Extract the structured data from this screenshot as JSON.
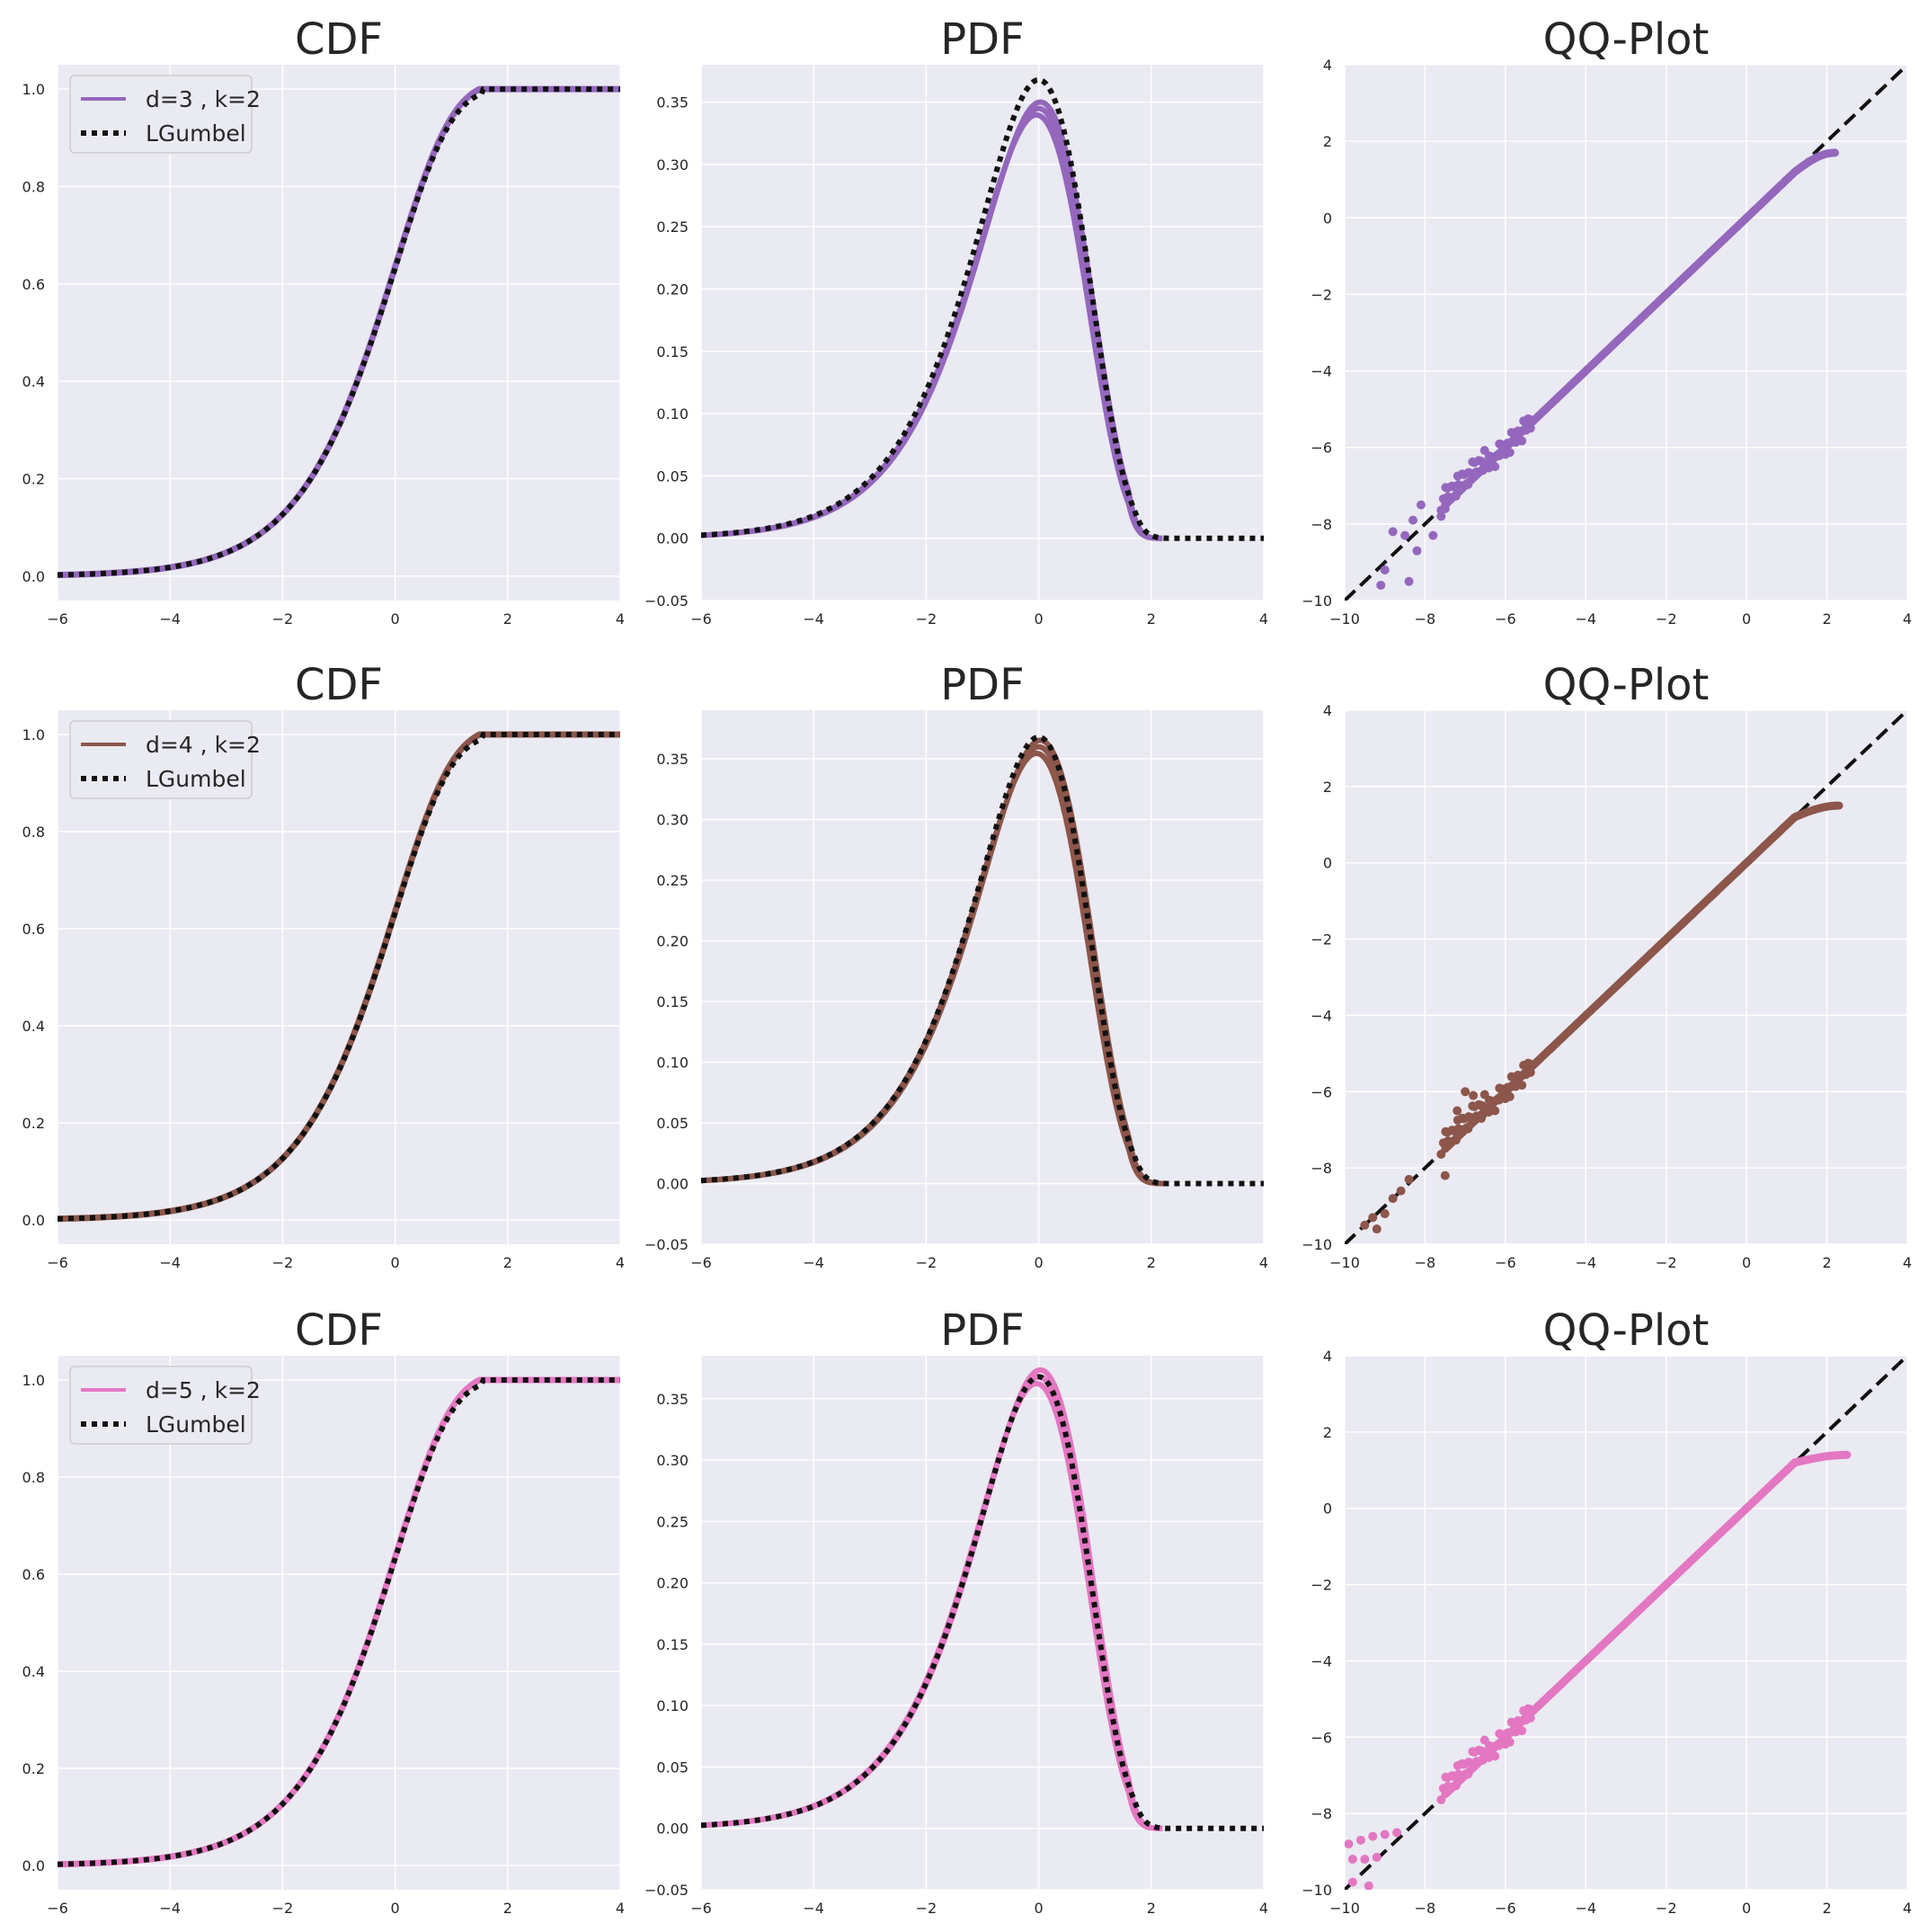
{
  "colors": {
    "background": "#eaeaf2",
    "grid": "#ffffff",
    "text": "#262626",
    "reference": "#111111",
    "legend_bg": "#eaeaf2",
    "legend_border": "#cccccc"
  },
  "chart_data": [
    {
      "type": "line",
      "kind": "cdf",
      "row": 0,
      "title": "CDF",
      "color": "#9467bd",
      "xlim": [
        -6,
        4
      ],
      "ylim": [
        -0.05,
        1.05
      ],
      "xticks": [
        "−6",
        "−4",
        "−2",
        "0",
        "2",
        "4"
      ],
      "yticks": [
        "0.0",
        "0.2",
        "0.4",
        "0.6",
        "0.8",
        "1.0"
      ],
      "legend_position": "upper-left",
      "series": [
        {
          "name": "d=3 , k=2",
          "style": "solid",
          "curve": "simulated CDF, saturates at 1.0 near x=1.5"
        },
        {
          "name": "LGumbel",
          "style": "dotted",
          "curve": "exp(-exp(-x)) mirrored: 1-exp(-exp(x)), clipped"
        }
      ],
      "points_x": [
        -6,
        -5,
        -4,
        -3,
        -2,
        -1.5,
        -1,
        -0.5,
        0,
        0.5,
        1,
        1.5,
        2,
        3,
        4
      ],
      "points_y": [
        0.002,
        0.007,
        0.018,
        0.049,
        0.127,
        0.2,
        0.308,
        0.453,
        0.632,
        0.81,
        0.95,
        1.0,
        1.0,
        1.0,
        1.0
      ]
    },
    {
      "type": "line",
      "kind": "pdf",
      "row": 0,
      "title": "PDF",
      "color": "#9467bd",
      "xlim": [
        -6,
        4
      ],
      "ylim": [
        -0.05,
        0.38
      ],
      "xticks": [
        "−6",
        "−4",
        "−2",
        "0",
        "2",
        "4"
      ],
      "yticks": [
        "−0.05",
        "0.00",
        "0.05",
        "0.10",
        "0.15",
        "0.20",
        "0.25",
        "0.30",
        "0.35"
      ],
      "series": [
        {
          "name": "d=3 , k=2",
          "style": "solid"
        },
        {
          "name": "LGumbel",
          "style": "dotted"
        }
      ],
      "peak": {
        "x": 0,
        "y": 0.368
      },
      "sim_peak": {
        "x": 0,
        "y": 0.345
      },
      "support_end": 2.2
    },
    {
      "type": "scatter",
      "kind": "qq",
      "row": 0,
      "title": "QQ-Plot",
      "color": "#9467bd",
      "xlim": [
        -10,
        4
      ],
      "ylim": [
        -10,
        4
      ],
      "xticks": [
        "−10",
        "−8",
        "−6",
        "−4",
        "−2",
        "0",
        "2",
        "4"
      ],
      "yticks": [
        "−10",
        "−8",
        "−6",
        "−4",
        "−2",
        "0",
        "2",
        "4"
      ],
      "reference": "y = x (dashed)",
      "upper_tail": {
        "x": 2.2,
        "y": 1.7
      },
      "lower_scatter": [
        [
          -8.1,
          -7.5
        ],
        [
          -8.3,
          -7.9
        ],
        [
          -8.5,
          -8.3
        ],
        [
          -8.8,
          -8.2
        ],
        [
          -9,
          -9.2
        ],
        [
          -9.1,
          -9.6
        ],
        [
          -8.4,
          -9.5
        ],
        [
          -7.8,
          -8.3
        ],
        [
          -7.6,
          -7.8
        ],
        [
          -8.2,
          -8.7
        ],
        [
          -7.5,
          -7.6
        ]
      ]
    },
    {
      "type": "line",
      "kind": "cdf",
      "row": 1,
      "title": "CDF",
      "color": "#8c564b",
      "xlim": [
        -6,
        4
      ],
      "ylim": [
        -0.05,
        1.05
      ],
      "xticks": [
        "−6",
        "−4",
        "−2",
        "0",
        "2",
        "4"
      ],
      "yticks": [
        "0.0",
        "0.2",
        "0.4",
        "0.6",
        "0.8",
        "1.0"
      ],
      "legend_position": "upper-left",
      "series": [
        {
          "name": "d=4 , k=2",
          "style": "solid"
        },
        {
          "name": "LGumbel",
          "style": "dotted"
        }
      ],
      "points_x": [
        -6,
        -5,
        -4,
        -3,
        -2,
        -1.5,
        -1,
        -0.5,
        0,
        0.5,
        1,
        1.5,
        2,
        3,
        4
      ],
      "points_y": [
        0.002,
        0.007,
        0.018,
        0.049,
        0.127,
        0.2,
        0.308,
        0.453,
        0.632,
        0.81,
        0.95,
        1.0,
        1.0,
        1.0,
        1.0
      ]
    },
    {
      "type": "line",
      "kind": "pdf",
      "row": 1,
      "title": "PDF",
      "color": "#8c564b",
      "xlim": [
        -6,
        4
      ],
      "ylim": [
        -0.05,
        0.39
      ],
      "xticks": [
        "−6",
        "−4",
        "−2",
        "0",
        "2",
        "4"
      ],
      "yticks": [
        "−0.05",
        "0.00",
        "0.05",
        "0.10",
        "0.15",
        "0.20",
        "0.25",
        "0.30",
        "0.35"
      ],
      "series": [
        {
          "name": "d=4 , k=2",
          "style": "solid"
        },
        {
          "name": "LGumbel",
          "style": "dotted"
        }
      ],
      "peak": {
        "x": 0,
        "y": 0.368
      },
      "sim_peak": {
        "x": 0,
        "y": 0.36
      },
      "support_end": 2.3
    },
    {
      "type": "scatter",
      "kind": "qq",
      "row": 1,
      "title": "QQ-Plot",
      "color": "#8c564b",
      "xlim": [
        -10,
        4
      ],
      "ylim": [
        -10,
        4
      ],
      "xticks": [
        "−10",
        "−8",
        "−6",
        "−4",
        "−2",
        "0",
        "2",
        "4"
      ],
      "yticks": [
        "−10",
        "−8",
        "−6",
        "−4",
        "−2",
        "0",
        "2",
        "4"
      ],
      "reference": "y = x (dashed)",
      "upper_tail": {
        "x": 2.3,
        "y": 1.5
      },
      "lower_scatter": [
        [
          -9.5,
          -9.5
        ],
        [
          -9.3,
          -9.3
        ],
        [
          -9,
          -9.2
        ],
        [
          -8.8,
          -8.8
        ],
        [
          -8.6,
          -8.6
        ],
        [
          -8.4,
          -8.3
        ],
        [
          -9.2,
          -9.6
        ],
        [
          -7,
          -6
        ],
        [
          -6.8,
          -6.1
        ],
        [
          -7.2,
          -6.5
        ],
        [
          -6.6,
          -6.7
        ],
        [
          -7.5,
          -8.2
        ]
      ]
    },
    {
      "type": "line",
      "kind": "cdf",
      "row": 2,
      "title": "CDF",
      "color": "#e377c2",
      "xlim": [
        -6,
        4
      ],
      "ylim": [
        -0.05,
        1.05
      ],
      "xticks": [
        "−6",
        "−4",
        "−2",
        "0",
        "2",
        "4"
      ],
      "yticks": [
        "0.0",
        "0.2",
        "0.4",
        "0.6",
        "0.8",
        "1.0"
      ],
      "legend_position": "upper-left",
      "series": [
        {
          "name": "d=5 , k=2",
          "style": "solid"
        },
        {
          "name": "LGumbel",
          "style": "dotted"
        }
      ],
      "points_x": [
        -6,
        -5,
        -4,
        -3,
        -2,
        -1.5,
        -1,
        -0.5,
        0,
        0.5,
        1,
        1.5,
        2,
        3,
        4
      ],
      "points_y": [
        0.002,
        0.007,
        0.018,
        0.049,
        0.127,
        0.2,
        0.308,
        0.453,
        0.632,
        0.81,
        0.95,
        1.0,
        1.0,
        1.0,
        1.0
      ]
    },
    {
      "type": "line",
      "kind": "pdf",
      "row": 2,
      "title": "PDF",
      "color": "#e377c2",
      "xlim": [
        -6,
        4
      ],
      "ylim": [
        -0.05,
        0.385
      ],
      "xticks": [
        "−6",
        "−4",
        "−2",
        "0",
        "2",
        "4"
      ],
      "yticks": [
        "−0.05",
        "0.00",
        "0.05",
        "0.10",
        "0.15",
        "0.20",
        "0.25",
        "0.30",
        "0.35"
      ],
      "series": [
        {
          "name": "d=5 , k=2",
          "style": "solid"
        },
        {
          "name": "LGumbel",
          "style": "dotted"
        }
      ],
      "peak": {
        "x": 0,
        "y": 0.368
      },
      "sim_peak": {
        "x": 0,
        "y": 0.368
      },
      "support_end": 2.2
    },
    {
      "type": "scatter",
      "kind": "qq",
      "row": 2,
      "title": "QQ-Plot",
      "color": "#e377c2",
      "xlim": [
        -10,
        4
      ],
      "ylim": [
        -10,
        4
      ],
      "xticks": [
        "−10",
        "−8",
        "−6",
        "−4",
        "−2",
        "0",
        "2",
        "4"
      ],
      "yticks": [
        "−10",
        "−8",
        "−6",
        "−4",
        "−2",
        "0",
        "2",
        "4"
      ],
      "reference": "y = x (dashed)",
      "upper_tail": {
        "x": 2.5,
        "y": 1.4
      },
      "lower_scatter": [
        [
          -9.9,
          -8.8
        ],
        [
          -9.6,
          -8.7
        ],
        [
          -9.3,
          -8.6
        ],
        [
          -9.0,
          -8.55
        ],
        [
          -8.7,
          -8.5
        ],
        [
          -9.8,
          -9.2
        ],
        [
          -9.5,
          -9.2
        ],
        [
          -9.2,
          -9.15
        ],
        [
          -9.8,
          -9.8
        ],
        [
          -9.4,
          -9.9
        ]
      ]
    }
  ]
}
